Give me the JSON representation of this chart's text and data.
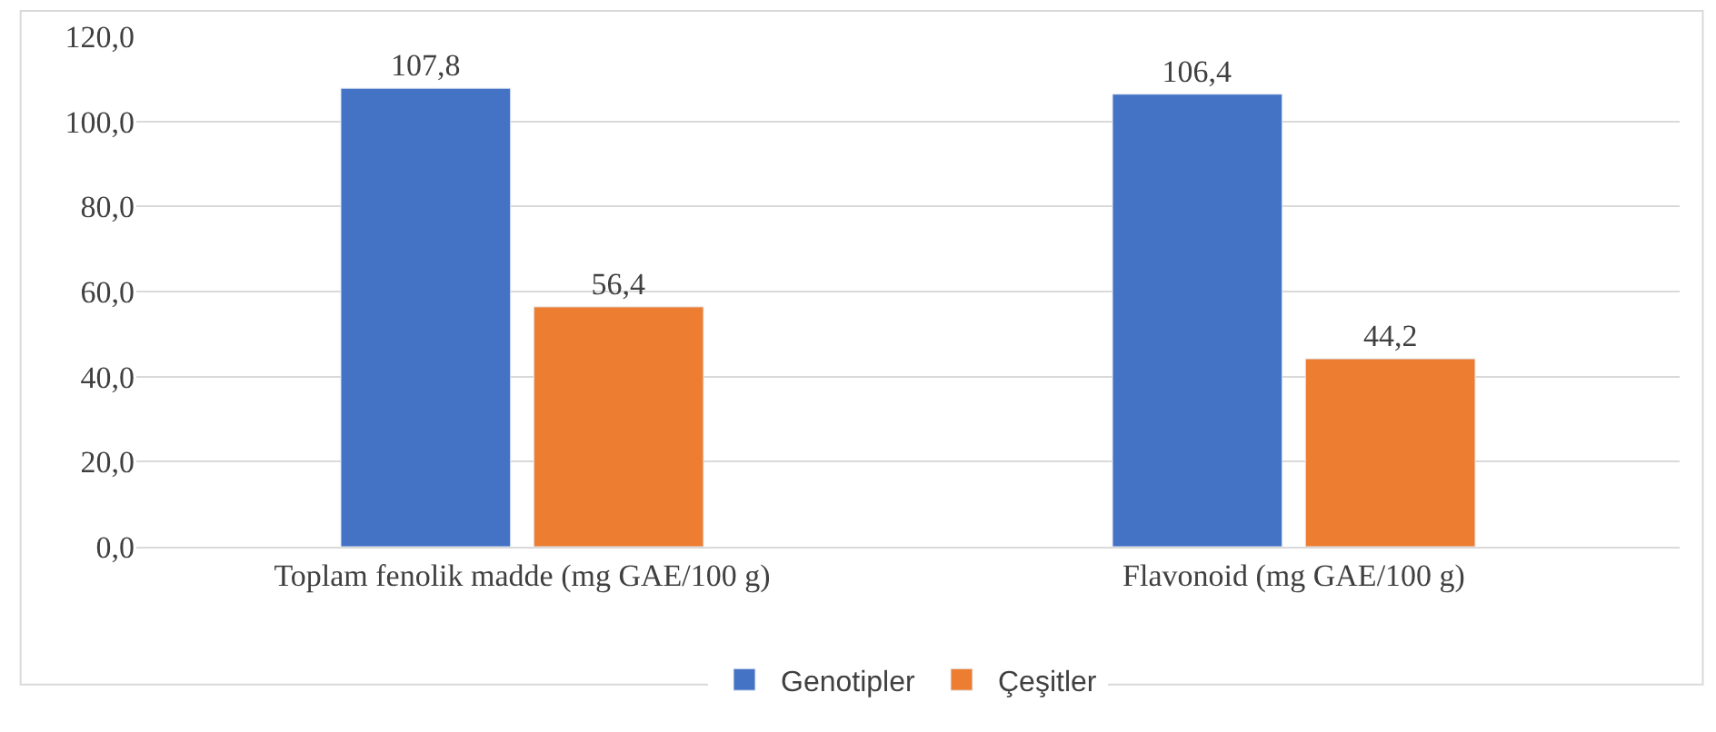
{
  "chart_data": {
    "type": "bar",
    "categories": [
      "Toplam fenolik madde (mg GAE/100 g)",
      "Flavonoid (mg GAE/100 g)"
    ],
    "series": [
      {
        "name": "Genotipler",
        "color": "#4472c4",
        "values": [
          107.8,
          106.4
        ],
        "value_labels": [
          "107,8",
          "106,4"
        ]
      },
      {
        "name": "Çeşitler",
        "color": "#ed7d31",
        "values": [
          56.4,
          44.2
        ],
        "value_labels": [
          "56,4",
          "44,2"
        ]
      }
    ],
    "ylim": [
      0,
      120
    ],
    "yticks": [
      {
        "value": 0,
        "label": "0,0"
      },
      {
        "value": 20,
        "label": "20,0"
      },
      {
        "value": 40,
        "label": "40,0"
      },
      {
        "value": 60,
        "label": "60,0"
      },
      {
        "value": 80,
        "label": "80,0"
      },
      {
        "value": 100,
        "label": "100,0"
      },
      {
        "value": 120,
        "label": "120,0"
      }
    ],
    "grid": "y",
    "legend": "bottom"
  }
}
